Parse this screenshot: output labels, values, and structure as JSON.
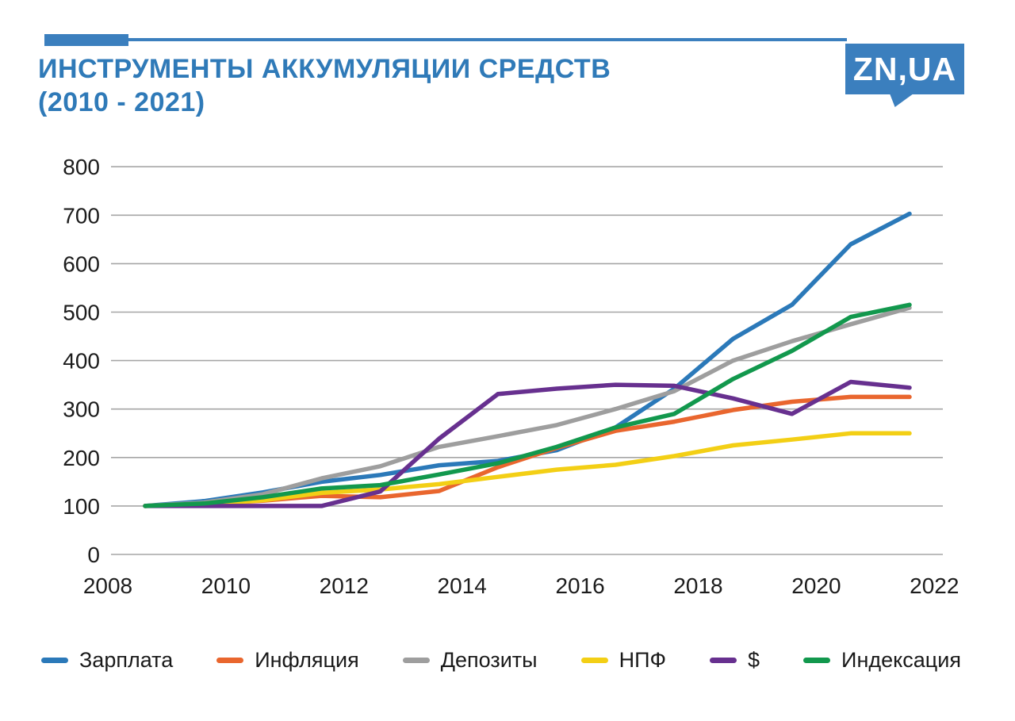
{
  "header": {
    "title_line1": "ИНСТРУМЕНТЫ АККУМУЛЯЦИИ СРЕДСТВ",
    "title_line2": "(2010 - 2021)",
    "title_color": "#2f7ab8",
    "brand_fill": "#3b7fbe",
    "logo_text": "ZN,UA"
  },
  "chart_data": {
    "type": "line",
    "x": [
      2008,
      2009,
      2010,
      2011,
      2012,
      2013,
      2014,
      2015,
      2016,
      2017,
      2018,
      2019,
      2020,
      2021
    ],
    "series": [
      {
        "name": "Зарплата",
        "color": "#2b79b9",
        "values": [
          100,
          110,
          128,
          150,
          164,
          184,
          193,
          215,
          262,
          342,
          445,
          515,
          640,
          703
        ]
      },
      {
        "name": "Инфляция",
        "color": "#e9662e",
        "values": [
          100,
          104,
          111,
          121,
          118,
          131,
          180,
          220,
          255,
          274,
          298,
          315,
          325,
          325
        ]
      },
      {
        "name": "Депозиты",
        "color": "#9e9e9e",
        "values": [
          100,
          107,
          124,
          157,
          182,
          222,
          244,
          267,
          300,
          337,
          400,
          440,
          475,
          509
        ]
      },
      {
        "name": "НПФ",
        "color": "#f3cf15",
        "values": [
          100,
          103,
          112,
          127,
          134,
          145,
          160,
          175,
          185,
          203,
          225,
          237,
          250,
          250
        ]
      },
      {
        "name": "$",
        "color": "#67308f",
        "values": [
          100,
          100,
          100,
          100,
          130,
          239,
          331,
          342,
          350,
          348,
          322,
          290,
          356,
          344
        ]
      },
      {
        "name": "Индексация",
        "color": "#12984d",
        "values": [
          100,
          105,
          118,
          136,
          143,
          165,
          188,
          222,
          262,
          290,
          362,
          420,
          490,
          515
        ]
      }
    ],
    "xticks": [
      2008,
      2010,
      2012,
      2014,
      2016,
      2018,
      2020,
      2022
    ],
    "yticks": [
      0,
      100,
      200,
      300,
      400,
      500,
      600,
      700,
      800
    ],
    "xlim": [
      2008,
      2022
    ],
    "ylim": [
      0,
      800
    ],
    "grid": "horizontal",
    "gridline_color": "#a6a6a6",
    "tick_label_color": "#1c1c1c",
    "legend_position": "bottom"
  }
}
